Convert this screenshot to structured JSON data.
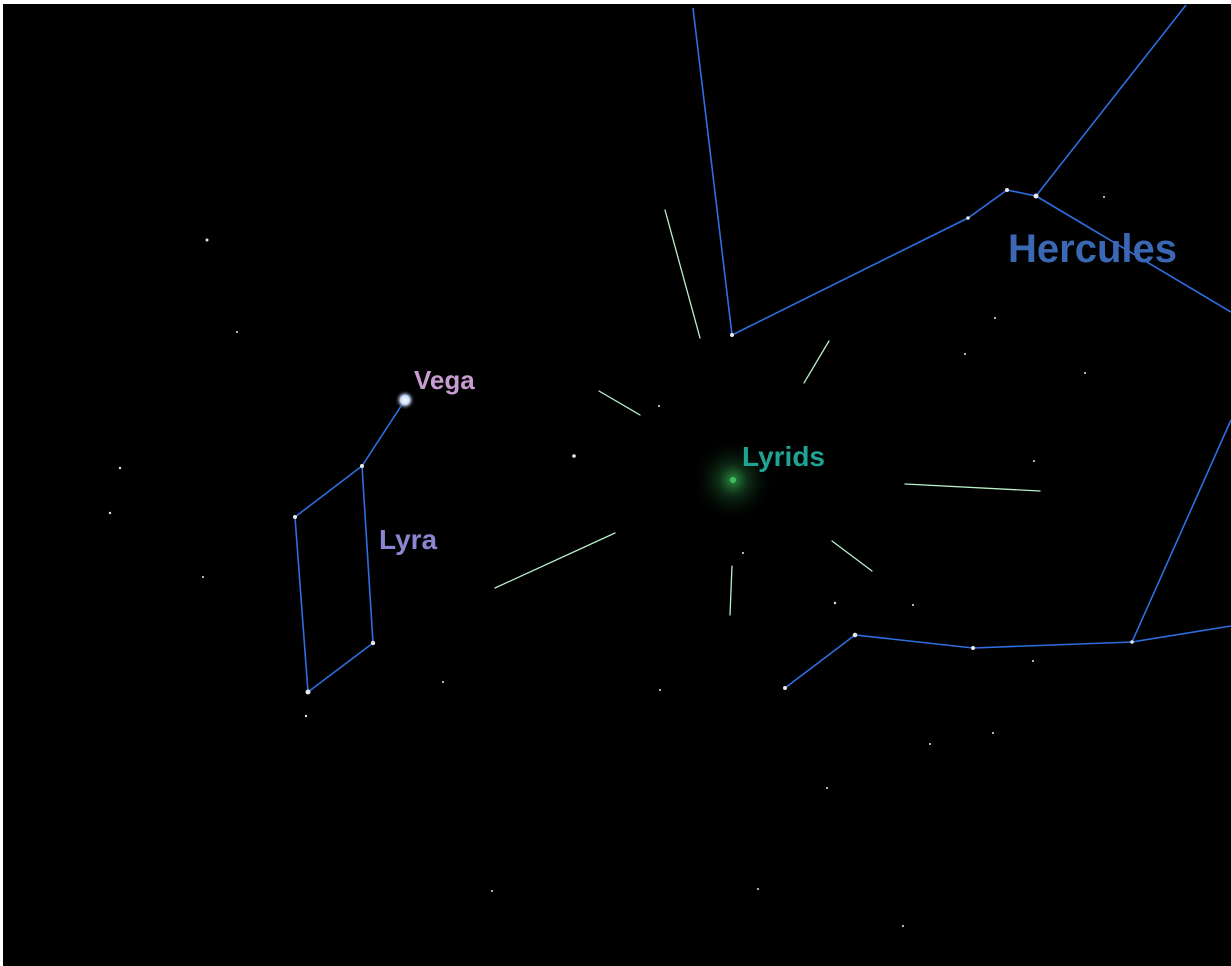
{
  "labels": {
    "star": "Vega",
    "constellation_small": "Lyra",
    "meteor_shower": "Lyrids",
    "constellation_large": "Hercules"
  }
}
